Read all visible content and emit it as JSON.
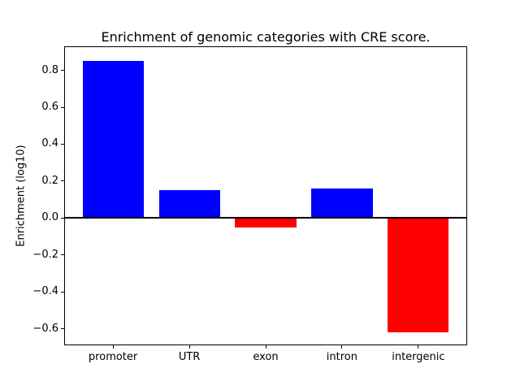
{
  "chart_data": {
    "type": "bar",
    "title": "Enrichment of genomic categories with CRE score.",
    "xlabel": "",
    "ylabel": "Enrichment (log10)",
    "categories": [
      "promoter",
      "UTR",
      "exon",
      "intron",
      "intergenic"
    ],
    "values": [
      0.85,
      0.15,
      -0.05,
      0.16,
      -0.62
    ],
    "positive_color": "#0000ff",
    "negative_color": "#ff0000",
    "yticks": [
      0.8,
      0.6,
      0.4,
      0.2,
      0.0,
      -0.2,
      -0.4,
      -0.6
    ],
    "ylim": [
      -0.69,
      0.93
    ],
    "xlim": [
      -0.64,
      4.64
    ],
    "bar_width": 0.8,
    "grid": false,
    "legend": "none",
    "zero_line": {
      "y": 0.0,
      "color": "#000000",
      "thickness_px": 2
    },
    "axis_color": "#000000",
    "background_color": "#ffffff"
  }
}
